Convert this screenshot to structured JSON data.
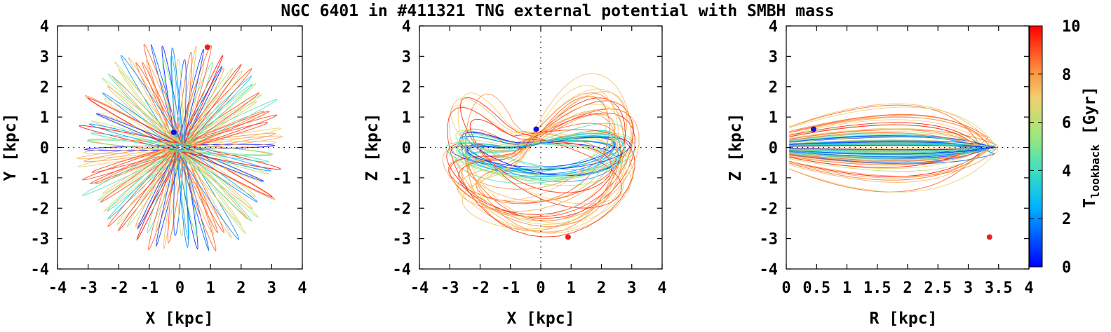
{
  "chart_data": {
    "title": "NGC 6401 in #411321 TNG external potential with SMBH mass",
    "panels": [
      {
        "type": "scatter",
        "xlabel": "X [kpc]",
        "ylabel": "Y [kpc]",
        "xlim": [
          -4,
          4
        ],
        "ylim": [
          -4,
          4
        ],
        "xticks": [
          "-4",
          "-3",
          "-2",
          "-1",
          "0",
          "1",
          "2",
          "3",
          "4"
        ],
        "yticks": [
          "-4",
          "-3",
          "-2",
          "-1",
          "0",
          "1",
          "2",
          "3",
          "4"
        ],
        "markers": [
          {
            "name": "present",
            "x": -0.2,
            "y": 0.5,
            "color": "#1010e0"
          },
          {
            "name": "initial",
            "x": 0.9,
            "y": 3.3,
            "color": "#ee2020"
          }
        ]
      },
      {
        "type": "scatter",
        "xlabel": "X [kpc]",
        "ylabel": "Z [kpc]",
        "xlim": [
          -4,
          4
        ],
        "ylim": [
          -4,
          4
        ],
        "xticks": [
          "-4",
          "-3",
          "-2",
          "-1",
          "0",
          "1",
          "2",
          "3",
          "4"
        ],
        "yticks": [
          "-4",
          "-3",
          "-2",
          "-1",
          "0",
          "1",
          "2",
          "3",
          "4"
        ],
        "markers": [
          {
            "name": "present",
            "x": -0.15,
            "y": 0.6,
            "color": "#1010e0"
          },
          {
            "name": "initial",
            "x": 0.9,
            "y": -2.95,
            "color": "#ee2020"
          }
        ]
      },
      {
        "type": "scatter",
        "xlabel": "R [kpc]",
        "ylabel": "Z [kpc]",
        "xlim": [
          0,
          4
        ],
        "ylim": [
          -4,
          4
        ],
        "xticks": [
          "0",
          "0.5",
          "1",
          "1.5",
          "2",
          "2.5",
          "3",
          "3.5",
          "4"
        ],
        "yticks": [
          "-4",
          "-3",
          "-2",
          "-1",
          "0",
          "1",
          "2",
          "3",
          "4"
        ],
        "markers": [
          {
            "name": "present",
            "x": 0.45,
            "y": 0.6,
            "color": "#1010e0"
          },
          {
            "name": "initial",
            "x": 3.35,
            "y": -2.95,
            "color": "#ee2020"
          }
        ]
      }
    ],
    "colorbar": {
      "label_main": "T",
      "label_sub": "lookback",
      "label_unit": " [Gyr]",
      "range": [
        0,
        10
      ],
      "ticks": [
        "0",
        "2",
        "4",
        "6",
        "8",
        "10"
      ]
    }
  }
}
